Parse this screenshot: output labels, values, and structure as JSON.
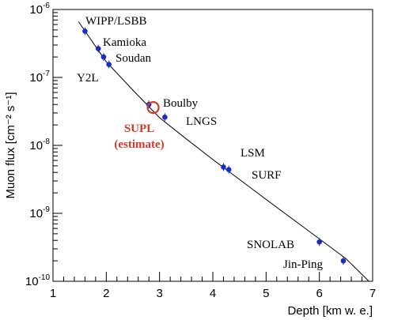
{
  "chart_data": {
    "type": "scatter",
    "xlabel": "Depth [km w. e.]",
    "ylabel": "Muon flux [cm⁻² s⁻¹]",
    "xlim": [
      1,
      7
    ],
    "ylim": [
      1e-10,
      1e-06
    ],
    "y_scale": "log",
    "x_ticks": [
      "1",
      "2",
      "3",
      "4",
      "5",
      "6",
      "7"
    ],
    "y_ticks": [
      {
        "value": 1e-10,
        "base": "10",
        "exp": "-10"
      },
      {
        "value": 1e-09,
        "base": "10",
        "exp": "-9"
      },
      {
        "value": 1e-08,
        "base": "10",
        "exp": "-8"
      },
      {
        "value": 1e-07,
        "base": "10",
        "exp": "-7"
      },
      {
        "value": 1e-06,
        "base": "10",
        "exp": "-6"
      }
    ],
    "points": [
      {
        "label": "WIPP/LSBB",
        "x": 1.6,
        "y": 4.8e-07
      },
      {
        "label": "Kamioka",
        "x": 1.85,
        "y": 2.65e-07
      },
      {
        "label": "Soudan",
        "x": 1.95,
        "y": 2e-07
      },
      {
        "label": "Y2L",
        "x": 2.05,
        "y": 1.55e-07
      },
      {
        "label": "Boulby",
        "x": 2.8,
        "y": 4e-08
      },
      {
        "label": "LNGS",
        "x": 3.1,
        "y": 2.6e-08
      },
      {
        "label": "LSM",
        "x": 4.2,
        "y": 4.8e-09
      },
      {
        "label": "SURF",
        "x": 4.3,
        "y": 4.4e-09
      },
      {
        "label": "SNOLAB",
        "x": 6.0,
        "y": 3.8e-10
      },
      {
        "label": "Jin-Ping",
        "x": 6.45,
        "y": 2e-10
      }
    ],
    "estimate": {
      "label_line1": "SUPL",
      "label_line2": "(estimate)",
      "x": 2.88,
      "y": 3.6e-08,
      "color": "#d03a2a"
    },
    "fit_curve": {
      "x": [
        1.48,
        2.0,
        2.5,
        3.0,
        3.5,
        4.0,
        4.5,
        5.0,
        5.5,
        6.0,
        6.5,
        6.93
      ],
      "y": [
        6.6e-07,
        1.7e-07,
        6.5e-08,
        2.55e-08,
        1.25e-08,
        6.2e-09,
        3.15e-09,
        1.6e-09,
        8.2e-10,
        4.2e-10,
        2.15e-10,
        1e-10
      ]
    },
    "colors": {
      "points": "#1c2bc4",
      "estimate": "#d03a2a",
      "curve": "#000000"
    },
    "grid": false
  }
}
